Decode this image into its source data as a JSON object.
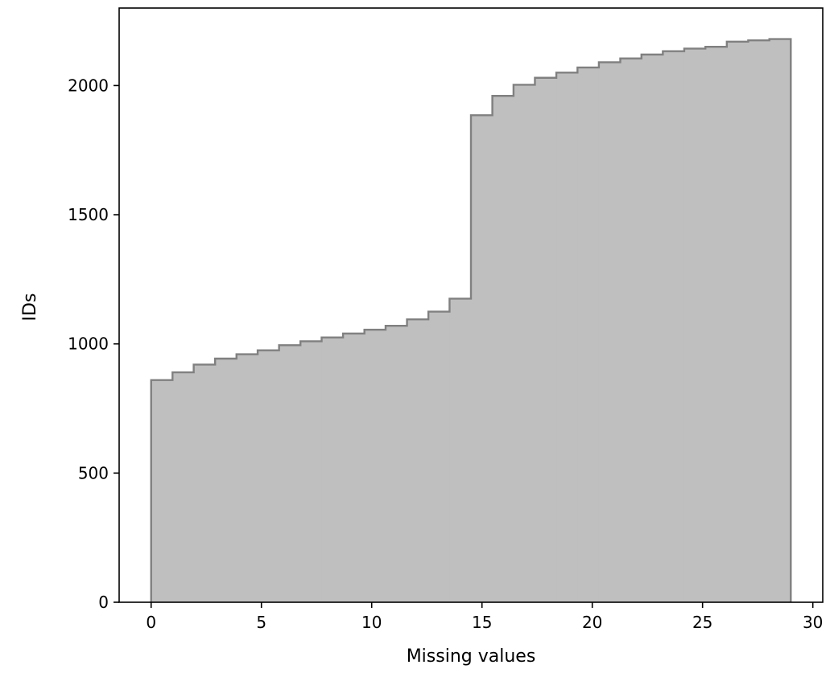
{
  "chart_data": {
    "type": "area",
    "title": "",
    "xlabel": "Missing values",
    "ylabel": "IDs",
    "xlim": [
      -1.45,
      30.45
    ],
    "ylim": [
      0,
      2300
    ],
    "x_ticks": [
      0,
      5,
      10,
      15,
      20,
      25,
      30
    ],
    "y_ticks": [
      0,
      500,
      1000,
      1500,
      2000
    ],
    "grid": false,
    "legend": "none",
    "series": [
      {
        "name": "",
        "bin_edges": [
          0,
          0.97,
          1.93,
          2.9,
          3.87,
          4.83,
          5.8,
          6.77,
          7.73,
          8.7,
          9.67,
          10.63,
          11.6,
          12.57,
          13.53,
          14.5,
          15.47,
          16.43,
          17.4,
          18.37,
          19.33,
          20.3,
          21.27,
          22.23,
          23.2,
          24.17,
          25.13,
          26.1,
          27.07,
          28.03,
          29
        ],
        "values": [
          860,
          890,
          920,
          943,
          960,
          975,
          995,
          1010,
          1025,
          1040,
          1055,
          1070,
          1095,
          1125,
          1175,
          1885,
          1960,
          2003,
          2030,
          2050,
          2070,
          2090,
          2105,
          2120,
          2133,
          2143,
          2150,
          2170,
          2175,
          2180
        ]
      }
    ],
    "colors": {
      "fill": "#bfbfbf",
      "stroke": "#808080"
    }
  }
}
